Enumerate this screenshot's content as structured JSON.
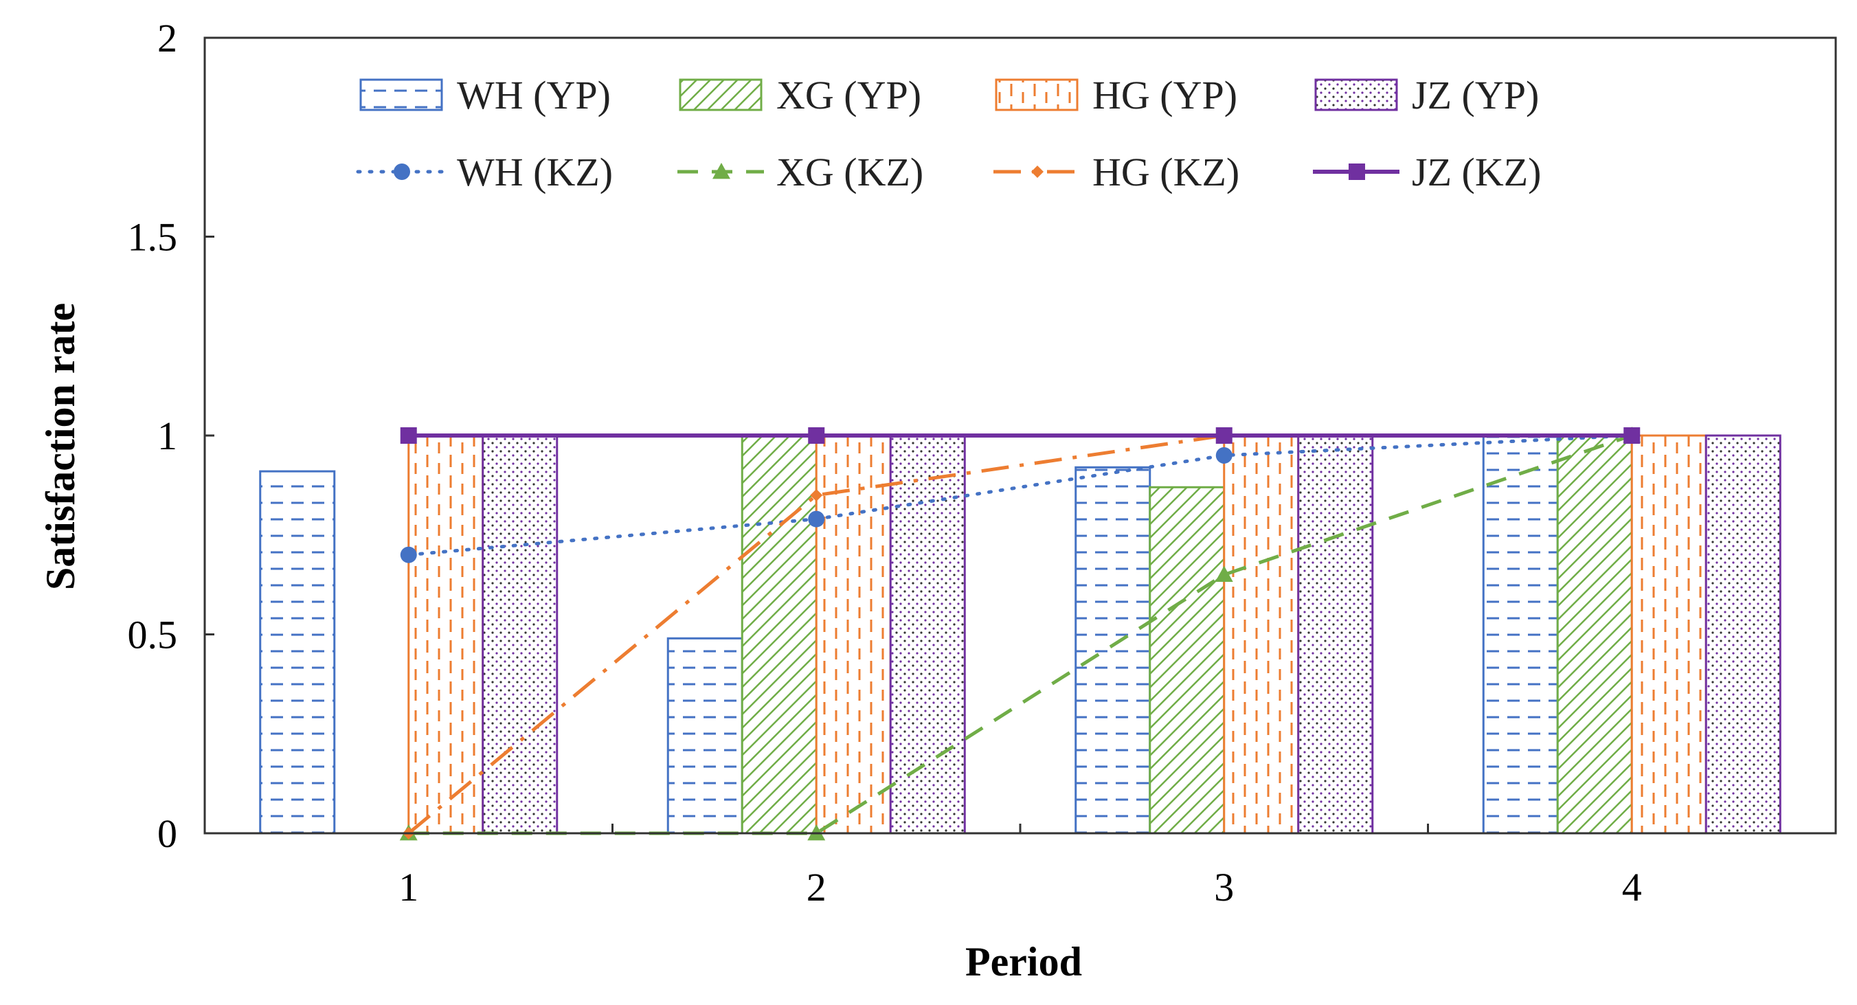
{
  "chart_data": {
    "type": "bar",
    "title": "",
    "xlabel": "Period",
    "ylabel": "Satisfaction rate",
    "categories": [
      "1",
      "2",
      "3",
      "4"
    ],
    "ylim": [
      0,
      2
    ],
    "yticks": [
      "0",
      "0.5",
      "1",
      "1.5",
      "2"
    ],
    "grid": false,
    "legend_position": "top",
    "bar_series": [
      {
        "name": "WH (YP)",
        "color": "#4472C4",
        "pattern": "dashes",
        "values": [
          0.91,
          0.49,
          0.92,
          1.0
        ]
      },
      {
        "name": "XG (YP)",
        "color": "#70AD47",
        "pattern": "diagonal",
        "values": [
          0.0,
          1.0,
          0.87,
          1.0
        ]
      },
      {
        "name": "HG (YP)",
        "color": "#ED7D31",
        "pattern": "vertical-dashes",
        "values": [
          1.0,
          1.0,
          1.0,
          1.0
        ]
      },
      {
        "name": "JZ (YP)",
        "color": "#7030A0",
        "pattern": "dots",
        "values": [
          1.0,
          1.0,
          1.0,
          1.0
        ]
      }
    ],
    "line_series": [
      {
        "name": "WH (KZ)",
        "color": "#4472C4",
        "style": "dotted",
        "marker": "circle",
        "values": [
          0.7,
          0.79,
          0.95,
          1.0
        ]
      },
      {
        "name": "XG (KZ)",
        "color": "#70AD47",
        "style": "dashed",
        "marker": "triangle",
        "values": [
          0.0,
          0.0,
          0.65,
          1.0
        ]
      },
      {
        "name": "HG (KZ)",
        "color": "#ED7D31",
        "style": "dashdot",
        "marker": "diamond",
        "values": [
          0.0,
          0.85,
          1.0,
          1.0
        ]
      },
      {
        "name": "JZ (KZ)",
        "color": "#7030A0",
        "style": "solid",
        "marker": "square",
        "values": [
          1.0,
          1.0,
          1.0,
          1.0
        ]
      }
    ]
  }
}
